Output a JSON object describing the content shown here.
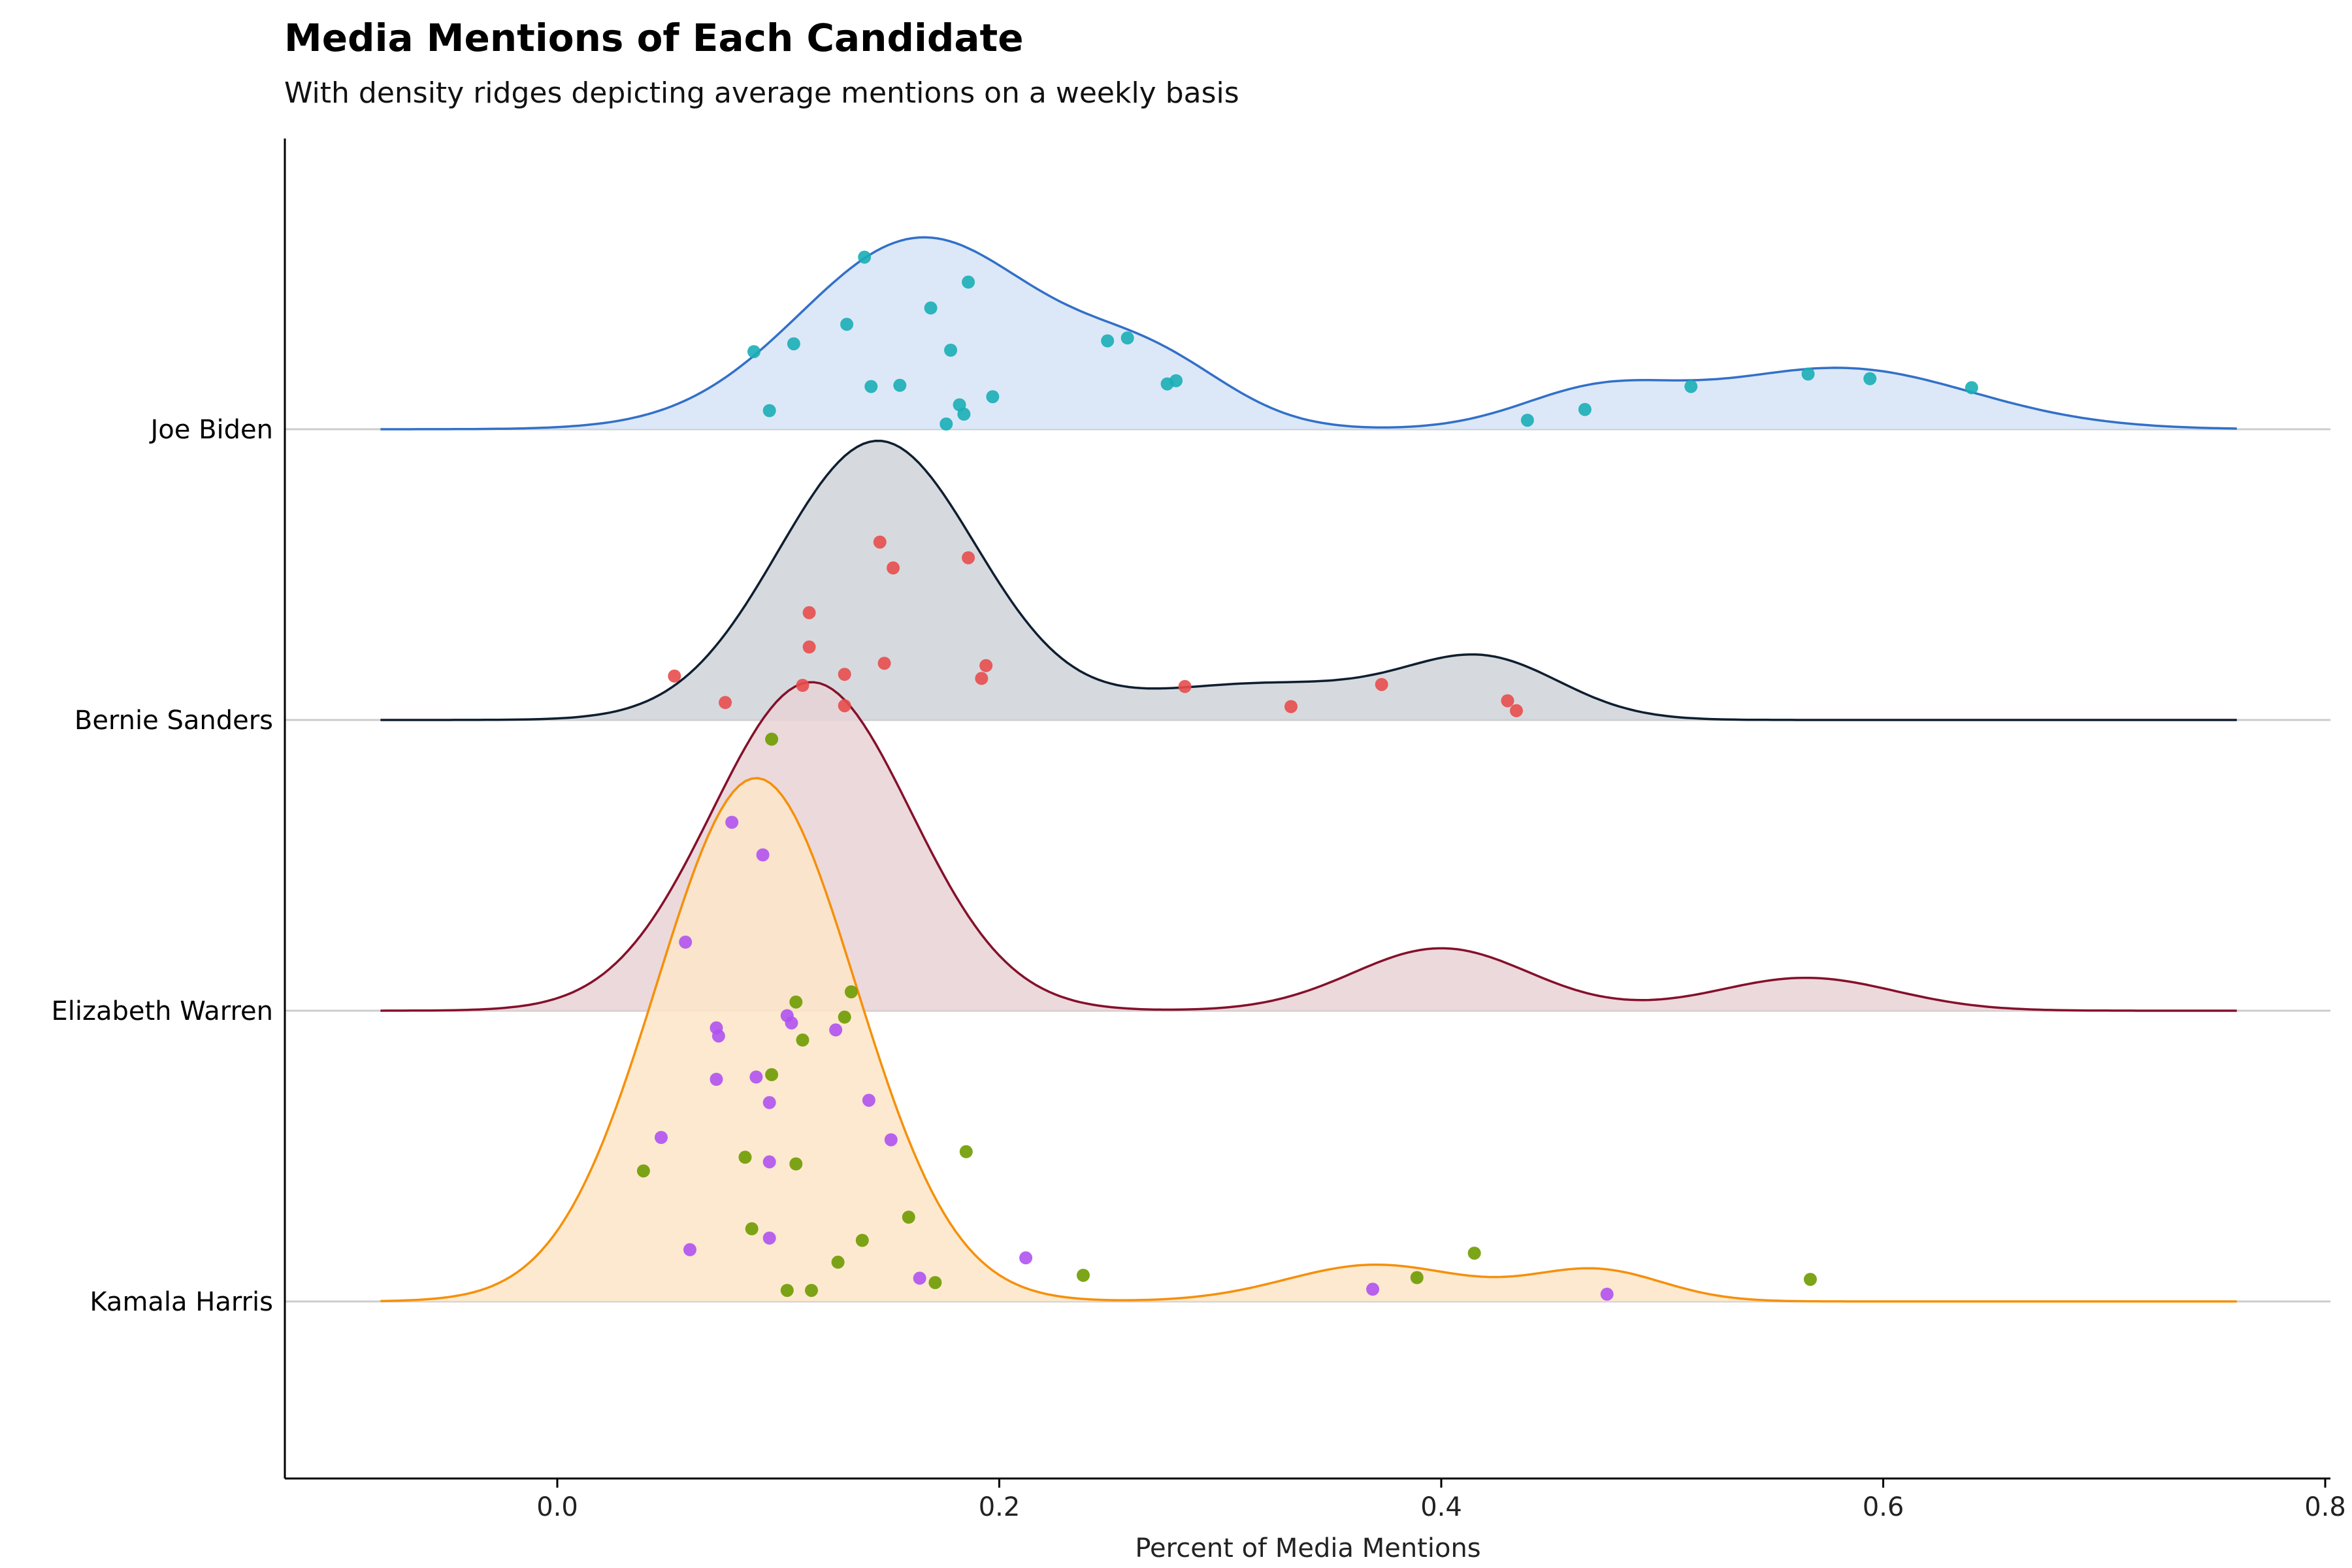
{
  "chart_data": {
    "type": "ridgeline",
    "title": "Media Mentions of Each Candidate",
    "subtitle": "With density ridges depicting average mentions on a weekly basis",
    "xlabel": "Percent of Media Mentions",
    "ylabel": "",
    "xlim": [
      -0.124,
      0.8
    ],
    "xticks": [
      {
        "value": 0.0,
        "label": "0.0"
      },
      {
        "value": 0.2,
        "label": "0.2"
      },
      {
        "value": 0.4,
        "label": "0.4"
      },
      {
        "value": 0.6,
        "label": "0.6"
      },
      {
        "value": 0.8,
        "label": "0.8"
      }
    ],
    "grid": false,
    "density_range": [
      -0.08,
      0.76
    ],
    "series": [
      {
        "name": "Joe Biden",
        "line_color": "#3270c8",
        "fill_color": "#d6e4f7",
        "point_color": "#1aaeb5",
        "peak": 0.66,
        "components": [
          {
            "mean": 0.165,
            "sd": 0.055,
            "weight": 1.0
          },
          {
            "mean": 0.27,
            "sd": 0.035,
            "weight": 0.3
          },
          {
            "mean": 0.47,
            "sd": 0.035,
            "weight": 0.18
          },
          {
            "mean": 0.58,
            "sd": 0.06,
            "weight": 0.32
          }
        ],
        "points": [
          {
            "x": 0.139,
            "h": 0.592
          },
          {
            "x": 0.186,
            "h": 0.506
          },
          {
            "x": 0.169,
            "h": 0.417
          },
          {
            "x": 0.131,
            "h": 0.361
          },
          {
            "x": 0.249,
            "h": 0.304
          },
          {
            "x": 0.258,
            "h": 0.314
          },
          {
            "x": 0.107,
            "h": 0.294
          },
          {
            "x": 0.089,
            "h": 0.267
          },
          {
            "x": 0.178,
            "h": 0.272
          },
          {
            "x": 0.142,
            "h": 0.147
          },
          {
            "x": 0.155,
            "h": 0.151
          },
          {
            "x": 0.28,
            "h": 0.167
          },
          {
            "x": 0.276,
            "h": 0.156
          },
          {
            "x": 0.197,
            "h": 0.112
          },
          {
            "x": 0.182,
            "h": 0.084
          },
          {
            "x": 0.096,
            "h": 0.064
          },
          {
            "x": 0.184,
            "h": 0.052
          },
          {
            "x": 0.176,
            "h": 0.018
          },
          {
            "x": 0.439,
            "h": 0.031
          },
          {
            "x": 0.465,
            "h": 0.068
          },
          {
            "x": 0.513,
            "h": 0.147
          },
          {
            "x": 0.566,
            "h": 0.19
          },
          {
            "x": 0.594,
            "h": 0.174
          },
          {
            "x": 0.64,
            "h": 0.143
          }
        ]
      },
      {
        "name": "Bernie Sanders",
        "line_color": "#0f1e30",
        "fill_color": "#cfd3d8",
        "point_color": "#e84c4c",
        "peak": 0.96,
        "components": [
          {
            "mean": 0.145,
            "sd": 0.045,
            "weight": 1.0
          },
          {
            "mean": 0.32,
            "sd": 0.06,
            "weight": 0.13
          },
          {
            "mean": 0.42,
            "sd": 0.035,
            "weight": 0.2
          }
        ],
        "points": [
          {
            "x": 0.146,
            "h": 0.612
          },
          {
            "x": 0.152,
            "h": 0.523
          },
          {
            "x": 0.186,
            "h": 0.558
          },
          {
            "x": 0.114,
            "h": 0.369
          },
          {
            "x": 0.114,
            "h": 0.251
          },
          {
            "x": 0.148,
            "h": 0.195
          },
          {
            "x": 0.194,
            "h": 0.187
          },
          {
            "x": 0.13,
            "h": 0.157
          },
          {
            "x": 0.192,
            "h": 0.143
          },
          {
            "x": 0.053,
            "h": 0.151
          },
          {
            "x": 0.111,
            "h": 0.119
          },
          {
            "x": 0.284,
            "h": 0.115
          },
          {
            "x": 0.373,
            "h": 0.122
          },
          {
            "x": 0.076,
            "h": 0.06
          },
          {
            "x": 0.13,
            "h": 0.049
          },
          {
            "x": 0.332,
            "h": 0.046
          },
          {
            "x": 0.43,
            "h": 0.066
          },
          {
            "x": 0.434,
            "h": 0.032
          }
        ]
      },
      {
        "name": "Elizabeth Warren",
        "line_color": "#85102a",
        "fill_color": "#e8d2d6",
        "point_color": "#6e9b00",
        "peak": 1.13,
        "components": [
          {
            "mean": 0.115,
            "sd": 0.045,
            "weight": 1.0
          },
          {
            "mean": 0.4,
            "sd": 0.04,
            "weight": 0.19
          },
          {
            "mean": 0.565,
            "sd": 0.04,
            "weight": 0.1
          }
        ],
        "points": [
          {
            "x": 0.097,
            "h": 0.934
          },
          {
            "x": 0.133,
            "h": 0.065
          },
          {
            "x": 0.108,
            "h": 0.03
          },
          {
            "x": 0.13,
            "h": -0.022
          },
          {
            "x": 0.111,
            "h": -0.101
          },
          {
            "x": 0.097,
            "h": -0.22
          },
          {
            "x": 0.185,
            "h": -0.485
          },
          {
            "x": 0.085,
            "h": -0.504
          },
          {
            "x": 0.108,
            "h": -0.527
          },
          {
            "x": 0.039,
            "h": -0.551
          },
          {
            "x": 0.159,
            "h": -0.71
          },
          {
            "x": 0.088,
            "h": -0.75
          },
          {
            "x": 0.138,
            "h": -0.79
          },
          {
            "x": 0.127,
            "h": -0.865
          },
          {
            "x": 0.238,
            "h": -0.91
          },
          {
            "x": 0.171,
            "h": -0.935
          },
          {
            "x": 0.389,
            "h": -0.918
          },
          {
            "x": 0.415,
            "h": -0.834
          },
          {
            "x": 0.104,
            "h": -0.962
          },
          {
            "x": 0.115,
            "h": -0.962
          },
          {
            "x": 0.567,
            "h": -0.924
          }
        ]
      },
      {
        "name": "Kamala Harris",
        "line_color": "#f5900a",
        "fill_color": "#fde5c8",
        "point_color": "#b052f0",
        "peak": 1.8,
        "components": [
          {
            "mean": 0.09,
            "sd": 0.045,
            "weight": 1.0
          },
          {
            "mean": 0.37,
            "sd": 0.04,
            "weight": 0.07
          },
          {
            "mean": 0.47,
            "sd": 0.03,
            "weight": 0.06
          }
        ],
        "points": [
          {
            "x": 0.079,
            "h": 1.648
          },
          {
            "x": 0.093,
            "h": 1.536
          },
          {
            "x": 0.058,
            "h": 1.236
          },
          {
            "x": 0.104,
            "h": 0.983
          },
          {
            "x": 0.072,
            "h": 0.941
          },
          {
            "x": 0.073,
            "h": 0.913
          },
          {
            "x": 0.106,
            "h": 0.958
          },
          {
            "x": 0.126,
            "h": 0.934
          },
          {
            "x": 0.09,
            "h": 0.772
          },
          {
            "x": 0.072,
            "h": 0.764
          },
          {
            "x": 0.096,
            "h": 0.684
          },
          {
            "x": 0.141,
            "h": 0.692
          },
          {
            "x": 0.047,
            "h": 0.564
          },
          {
            "x": 0.151,
            "h": 0.556
          },
          {
            "x": 0.096,
            "h": 0.48
          },
          {
            "x": 0.06,
            "h": 0.178
          },
          {
            "x": 0.096,
            "h": 0.218
          },
          {
            "x": 0.212,
            "h": 0.15
          },
          {
            "x": 0.164,
            "h": 0.08
          },
          {
            "x": 0.369,
            "h": 0.042
          },
          {
            "x": 0.475,
            "h": 0.025
          }
        ]
      }
    ]
  }
}
